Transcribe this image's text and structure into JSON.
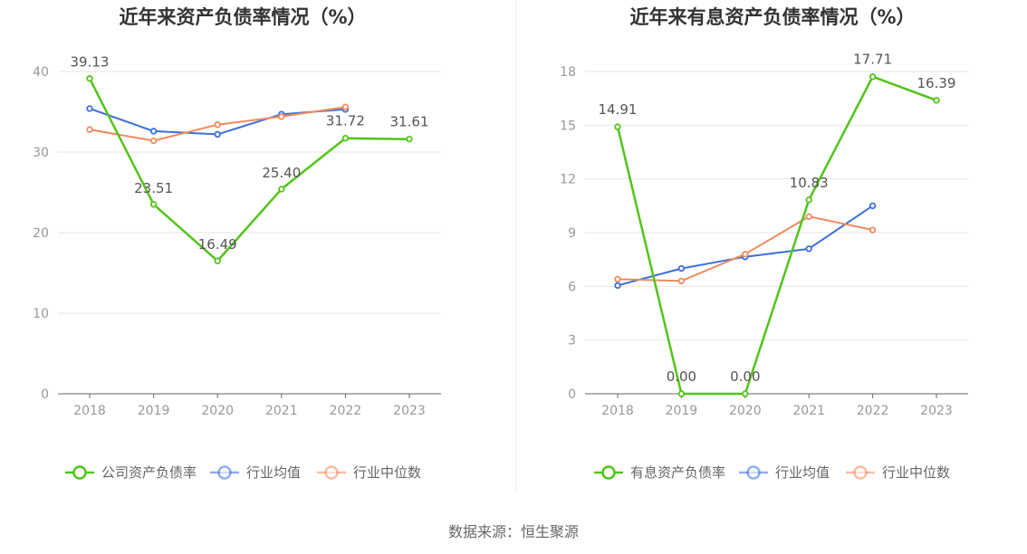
{
  "chart_data": [
    {
      "type": "line",
      "title": "近年来资产负债率情况（%）",
      "xlabel": "",
      "ylabel": "",
      "categories": [
        "2018",
        "2019",
        "2020",
        "2021",
        "2022",
        "2023"
      ],
      "y_ticks": [
        "0",
        "10",
        "20",
        "30",
        "40"
      ],
      "ylim": [
        0,
        40
      ],
      "grid": true,
      "legend_position": "bottom",
      "series": [
        {
          "name": "公司资产负债率",
          "color": "#52c41a",
          "values": [
            39.13,
            23.51,
            16.49,
            25.4,
            31.72,
            31.61
          ],
          "labels": [
            "39.13",
            "23.51",
            "16.49",
            "25.40",
            "31.72",
            "31.61"
          ]
        },
        {
          "name": "行业均值",
          "color": "#3b6fd8",
          "values": [
            35.4,
            32.6,
            32.2,
            34.7,
            35.3,
            null
          ]
        },
        {
          "name": "行业中位数",
          "color": "#f08a5d",
          "values": [
            32.8,
            31.4,
            33.4,
            34.4,
            35.6,
            null
          ]
        }
      ]
    },
    {
      "type": "line",
      "title": "近年来有息资产负债率情况（%）",
      "xlabel": "",
      "ylabel": "",
      "categories": [
        "2018",
        "2019",
        "2020",
        "2021",
        "2022",
        "2023"
      ],
      "y_ticks": [
        "0",
        "3",
        "6",
        "9",
        "12",
        "15",
        "18"
      ],
      "ylim": [
        0,
        18
      ],
      "grid": true,
      "legend_position": "bottom",
      "series": [
        {
          "name": "有息资产负债率",
          "color": "#52c41a",
          "values": [
            14.91,
            0.0,
            0.0,
            10.83,
            17.71,
            16.39
          ],
          "labels": [
            "14.91",
            "0.00",
            "0.00",
            "10.83",
            "17.71",
            "16.39"
          ]
        },
        {
          "name": "行业均值",
          "color": "#3b6fd8",
          "values": [
            6.05,
            7.0,
            7.65,
            8.1,
            10.5,
            null
          ]
        },
        {
          "name": "行业中位数",
          "color": "#f08a5d",
          "values": [
            6.4,
            6.3,
            7.8,
            9.9,
            9.15,
            null
          ]
        }
      ]
    }
  ],
  "footer": "数据来源：恒生聚源"
}
